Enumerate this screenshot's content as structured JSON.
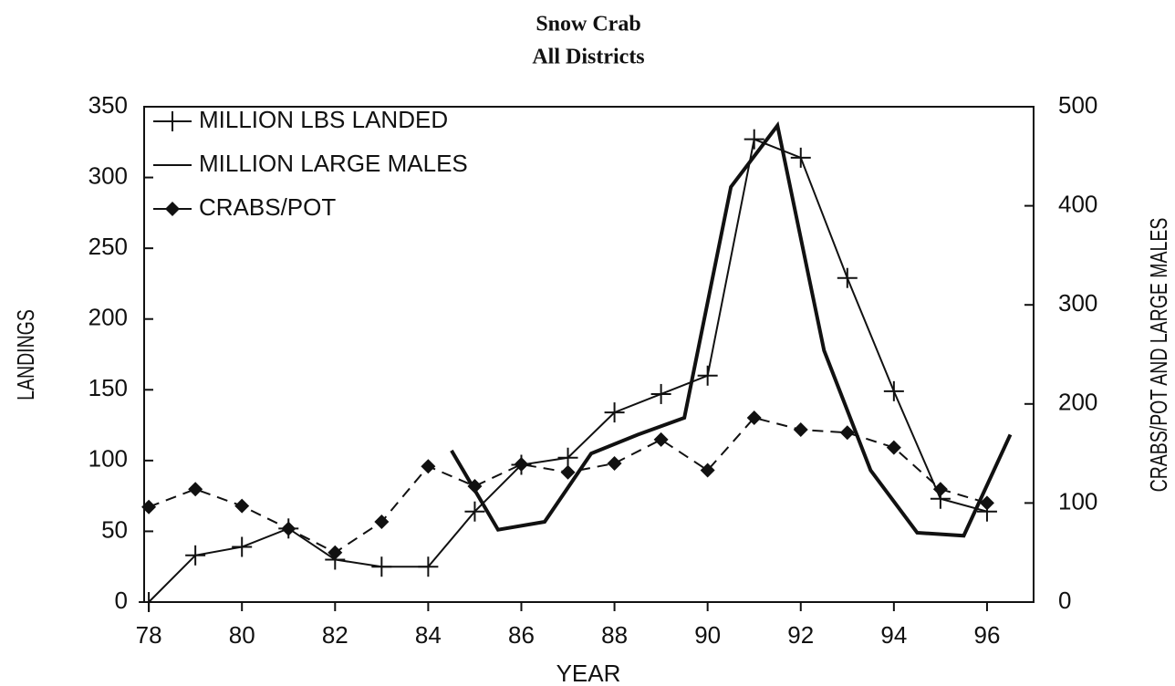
{
  "chart_data": {
    "type": "line",
    "title": "Snow Crab",
    "subtitle": "All Districts",
    "x_label": "YEAR",
    "y_label": "LANDINGS",
    "y2_label": "CRABS/POT AND LARGE MALES",
    "xlim": [
      77.9,
      97
    ],
    "xticks": [
      78,
      80,
      82,
      84,
      86,
      88,
      90,
      92,
      94,
      96
    ],
    "ylim": [
      0,
      350
    ],
    "yticks": [
      0,
      50,
      100,
      150,
      200,
      250,
      300,
      350
    ],
    "y2lim": [
      0,
      500
    ],
    "y2ticks": [
      0,
      100,
      200,
      300,
      400,
      500
    ],
    "series": [
      {
        "name": "MILLION LBS LANDED",
        "color": "#111",
        "marker": "plus",
        "x": [
          78,
          79,
          80,
          81,
          82,
          83,
          84,
          85,
          86,
          87,
          88,
          89,
          90,
          91,
          92,
          93,
          94,
          95,
          96
        ],
        "values": [
          0,
          33,
          39,
          52,
          30,
          25,
          25,
          64,
          97,
          102,
          134,
          147,
          160,
          327,
          314,
          229,
          149,
          73,
          64
        ]
      },
      {
        "name": "MILLION LARGE MALES",
        "color": "#111",
        "marker": "none",
        "axis": "y2",
        "x": [
          84.5,
          85.5,
          86.5,
          87.5,
          88.5,
          89.5,
          90.5,
          91.5,
          92.5,
          93.5,
          94.5,
          95.5,
          96.5
        ],
        "values": [
          153,
          73,
          81,
          150,
          169,
          186,
          419,
          481,
          254,
          133,
          70,
          67,
          169
        ]
      },
      {
        "name": "CRABS/POT",
        "color": "#111",
        "marker": "diamond",
        "dashed": true,
        "axis": "y2",
        "x": [
          78,
          79,
          80,
          81,
          82,
          83,
          84,
          85,
          86,
          87,
          88,
          89,
          90,
          91,
          92,
          93,
          94,
          95,
          96
        ],
        "values": [
          96,
          114,
          97,
          74,
          50,
          81,
          137,
          117,
          139,
          131,
          140,
          164,
          133,
          186,
          174,
          171,
          156,
          114,
          100
        ]
      }
    ]
  }
}
